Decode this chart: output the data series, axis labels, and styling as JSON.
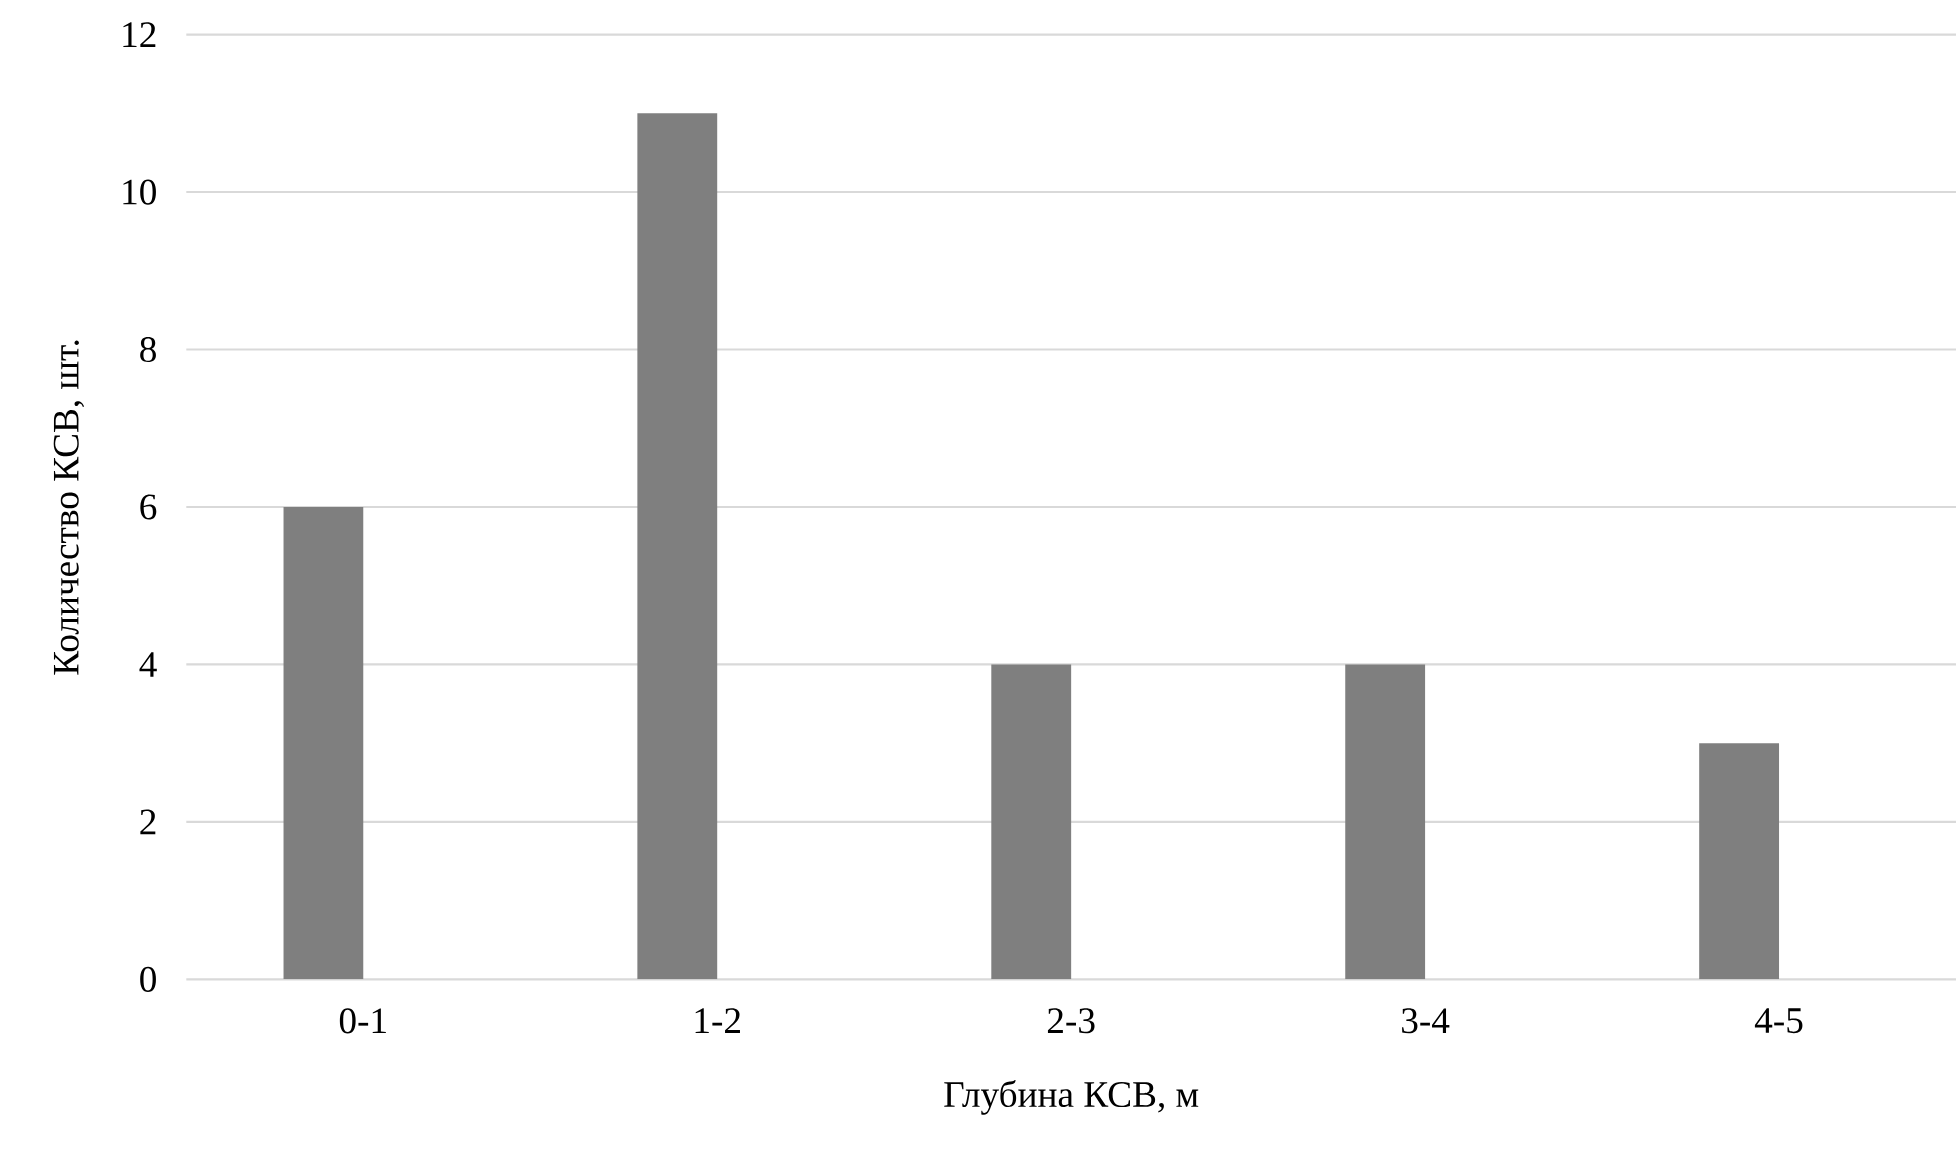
{
  "chart_data": {
    "type": "bar",
    "xlabel": "Глубина КСВ, м",
    "ylabel": "Количество КСВ, шт.",
    "categories": [
      "0-1",
      "1-2",
      "2-3",
      "3-4",
      "4-5"
    ],
    "values": [
      6,
      11,
      4,
      4,
      3
    ],
    "color": "#7f7f7f",
    "ylim": [
      0,
      12
    ],
    "yticks": [
      0,
      2,
      4,
      6,
      8,
      10,
      12
    ],
    "grid": "y"
  }
}
